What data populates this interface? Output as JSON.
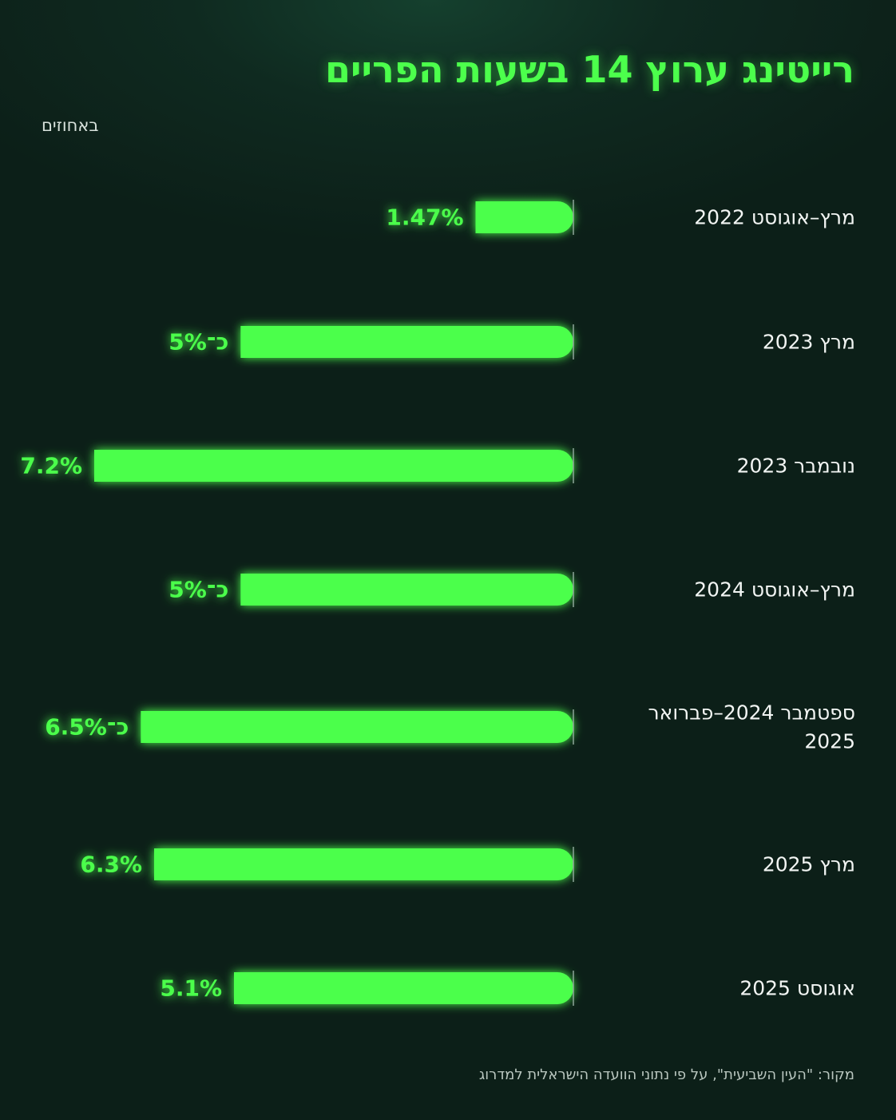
{
  "chart_data": {
    "type": "bar",
    "orientation": "horizontal",
    "direction": "rtl",
    "title": "רייטינג ערוץ 14 בשעות הפריים",
    "subtitle": "באחוזים",
    "categories": [
      [
        "מרץ–אוגוסט 2022"
      ],
      [
        "מרץ 2023"
      ],
      [
        "נובמבר 2023"
      ],
      [
        "מרץ–אוגוסט 2024"
      ],
      [
        "ספטמבר 2024–פברואר",
        "2025"
      ],
      [
        "מרץ 2025"
      ],
      [
        "אוגוסט 2025"
      ]
    ],
    "values": [
      1.47,
      5,
      7.2,
      5,
      6.5,
      6.3,
      5.1
    ],
    "value_labels": [
      "1.47%",
      "כ־5%",
      "7.2%",
      "כ־5%",
      "כ־6.5%",
      "6.3%",
      "5.1%"
    ],
    "xlim": [
      0,
      7.2
    ],
    "grid": false,
    "bar_color": "#4cff4c",
    "source": "מקור: \"העין השביעית\", על פי נתוני הוועדה הישראלית למדרוג"
  },
  "colors": {
    "background": "#0c1f18",
    "accent": "#4cff4c",
    "text": "#f2f5f3",
    "muted": "#b9c6bf"
  }
}
